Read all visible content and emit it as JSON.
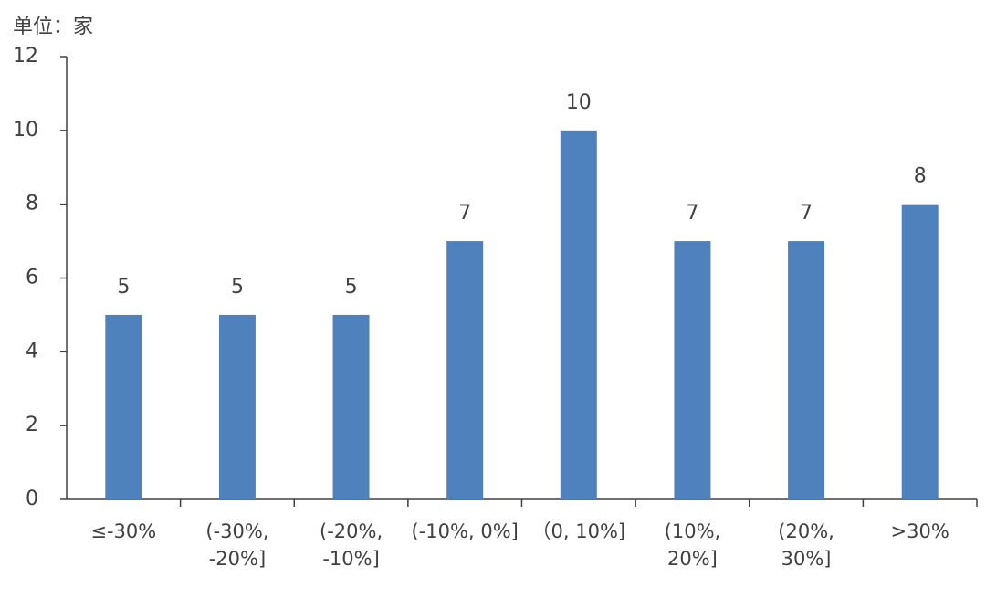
{
  "chart_data": {
    "type": "bar",
    "unit": "单位：家",
    "categories": [
      "≤-30%",
      "(-30%, -20%]",
      "(-20%, -10%]",
      "(-10%, 0%]",
      "（0, 10%]",
      "(10%, 20%]",
      "(20%, 30%]",
      ">30%"
    ],
    "values": [
      5,
      5,
      5,
      7,
      10,
      7,
      7,
      8
    ],
    "color": "#4f81bd",
    "ylim": [
      0,
      12
    ],
    "yticks": [
      0,
      2,
      4,
      6,
      8,
      10,
      12
    ],
    "grid": false
  }
}
